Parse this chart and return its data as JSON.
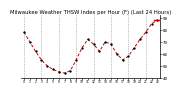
{
  "title": "Milwaukee Weather THSW Index per Hour (F) (Last 24 Hours)",
  "hours": [
    0,
    1,
    2,
    3,
    4,
    5,
    6,
    7,
    8,
    9,
    10,
    11,
    12,
    13,
    14,
    15,
    16,
    17,
    18,
    19,
    20,
    21,
    22,
    23
  ],
  "values": [
    78,
    70,
    62,
    55,
    50,
    47,
    45,
    44,
    46,
    55,
    65,
    72,
    68,
    62,
    70,
    68,
    60,
    55,
    58,
    65,
    72,
    78,
    85,
    88
  ],
  "ylim": [
    40,
    92
  ],
  "line_color": "#cc0000",
  "marker_color": "#000000",
  "bg_color": "#ffffff",
  "grid_color": "#888888",
  "title_color": "#000000",
  "title_fontsize": 3.8,
  "axis_fontsize": 3.0,
  "high_ref": 88,
  "high_color": "#cc0000",
  "yticks": [
    40,
    50,
    60,
    70,
    80,
    90
  ],
  "grid_hours": [
    0,
    3,
    6,
    9,
    12,
    15,
    18,
    21
  ]
}
